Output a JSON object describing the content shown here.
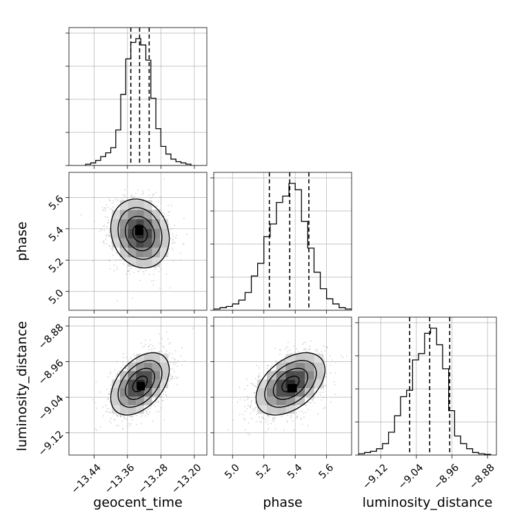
{
  "chart_data": {
    "type": "corner",
    "parameters": [
      "geocent_time",
      "phase",
      "luminosity_distance"
    ],
    "xlabels": [
      "geocent_time",
      "phase",
      "luminosity_distance"
    ],
    "ylabels": [
      "",
      "phase",
      "luminosity_distance"
    ],
    "grid": true,
    "colors": {
      "line": "#000000",
      "scatter": "#9a9a9a",
      "grid": "#b0b0b0",
      "frame": "#000000"
    },
    "axes": {
      "geocent_time": {
        "range": [
          -13.5,
          -13.17
        ],
        "ticks": [
          -13.44,
          -13.36,
          -13.28,
          -13.2
        ],
        "tick_labels": [
          "−13.44",
          "−13.36",
          "−13.28",
          "−13.20"
        ],
        "mean": -13.33,
        "sigma": 0.035,
        "quantiles": [
          -13.352,
          -13.331,
          -13.308
        ]
      },
      "phase": {
        "range": [
          4.88,
          5.76
        ],
        "ticks": [
          5.0,
          5.2,
          5.4,
          5.6
        ],
        "tick_labels": [
          "5.0",
          "5.2",
          "5.4",
          "5.6"
        ],
        "mean": 5.37,
        "sigma": 0.11,
        "quantiles": [
          5.235,
          5.365,
          5.487
        ]
      },
      "luminosity_distance": {
        "range": [
          -9.17,
          -8.86
        ],
        "ticks": [
          -9.12,
          -9.04,
          -8.96,
          -8.88
        ],
        "tick_labels": [
          "−9.12",
          "−9.04",
          "−8.96",
          "−8.88"
        ],
        "mean": -9.01,
        "sigma": 0.035,
        "quantiles": [
          -9.055,
          -9.01,
          -8.965
        ]
      }
    },
    "histograms": {
      "geocent_time": {
        "edges": [
          -13.46,
          -13.448,
          -13.436,
          -13.424,
          -13.412,
          -13.4,
          -13.388,
          -13.376,
          -13.364,
          -13.352,
          -13.34,
          -13.328,
          -13.316,
          -13.304,
          -13.292,
          -13.28,
          -13.268,
          -13.256,
          -13.244,
          -13.232,
          -13.22,
          -13.208
        ],
        "counts": [
          0.01,
          0.02,
          0.04,
          0.07,
          0.1,
          0.14,
          0.28,
          0.56,
          0.84,
          0.97,
          1.0,
          0.95,
          0.83,
          0.53,
          0.29,
          0.15,
          0.09,
          0.05,
          0.03,
          0.02,
          0.01
        ]
      },
      "phase": {
        "edges": [
          4.88,
          4.92,
          4.96,
          5.0,
          5.04,
          5.08,
          5.12,
          5.16,
          5.2,
          5.24,
          5.28,
          5.32,
          5.36,
          5.4,
          5.44,
          5.48,
          5.52,
          5.56,
          5.6,
          5.64,
          5.68,
          5.72,
          5.76
        ],
        "counts": [
          0.01,
          0.02,
          0.03,
          0.05,
          0.08,
          0.14,
          0.27,
          0.37,
          0.58,
          0.68,
          0.85,
          0.9,
          1.0,
          0.95,
          0.7,
          0.49,
          0.3,
          0.17,
          0.09,
          0.05,
          0.02,
          0.01
        ]
      },
      "luminosity_distance": {
        "edges": [
          -9.17,
          -9.1565,
          -9.143,
          -9.1295,
          -9.116,
          -9.1025,
          -9.089,
          -9.0755,
          -9.062,
          -9.0485,
          -9.035,
          -9.0215,
          -9.008,
          -8.9945,
          -8.981,
          -8.9675,
          -8.954,
          -8.9405,
          -8.927,
          -8.9135,
          -8.9,
          -8.8865,
          -8.873
        ],
        "counts": [
          0.01,
          0.02,
          0.03,
          0.05,
          0.09,
          0.18,
          0.31,
          0.46,
          0.51,
          0.75,
          0.8,
          0.96,
          1.0,
          0.87,
          0.68,
          0.35,
          0.15,
          0.09,
          0.05,
          0.02,
          0.01,
          0.005
        ]
      }
    },
    "pairs": [
      {
        "x": "geocent_time",
        "y": "phase",
        "correlation": -0.15,
        "peak": [
          -13.332,
          5.39
        ]
      },
      {
        "x": "geocent_time",
        "y": "luminosity_distance",
        "correlation": 0.45,
        "peak": [
          -13.328,
          -9.015
        ]
      },
      {
        "x": "phase",
        "y": "luminosity_distance",
        "correlation": 0.45,
        "peak": [
          5.38,
          -9.02
        ]
      }
    ],
    "contour_levels_sigma": [
      0.5,
      1.0,
      1.5,
      2.0
    ]
  }
}
